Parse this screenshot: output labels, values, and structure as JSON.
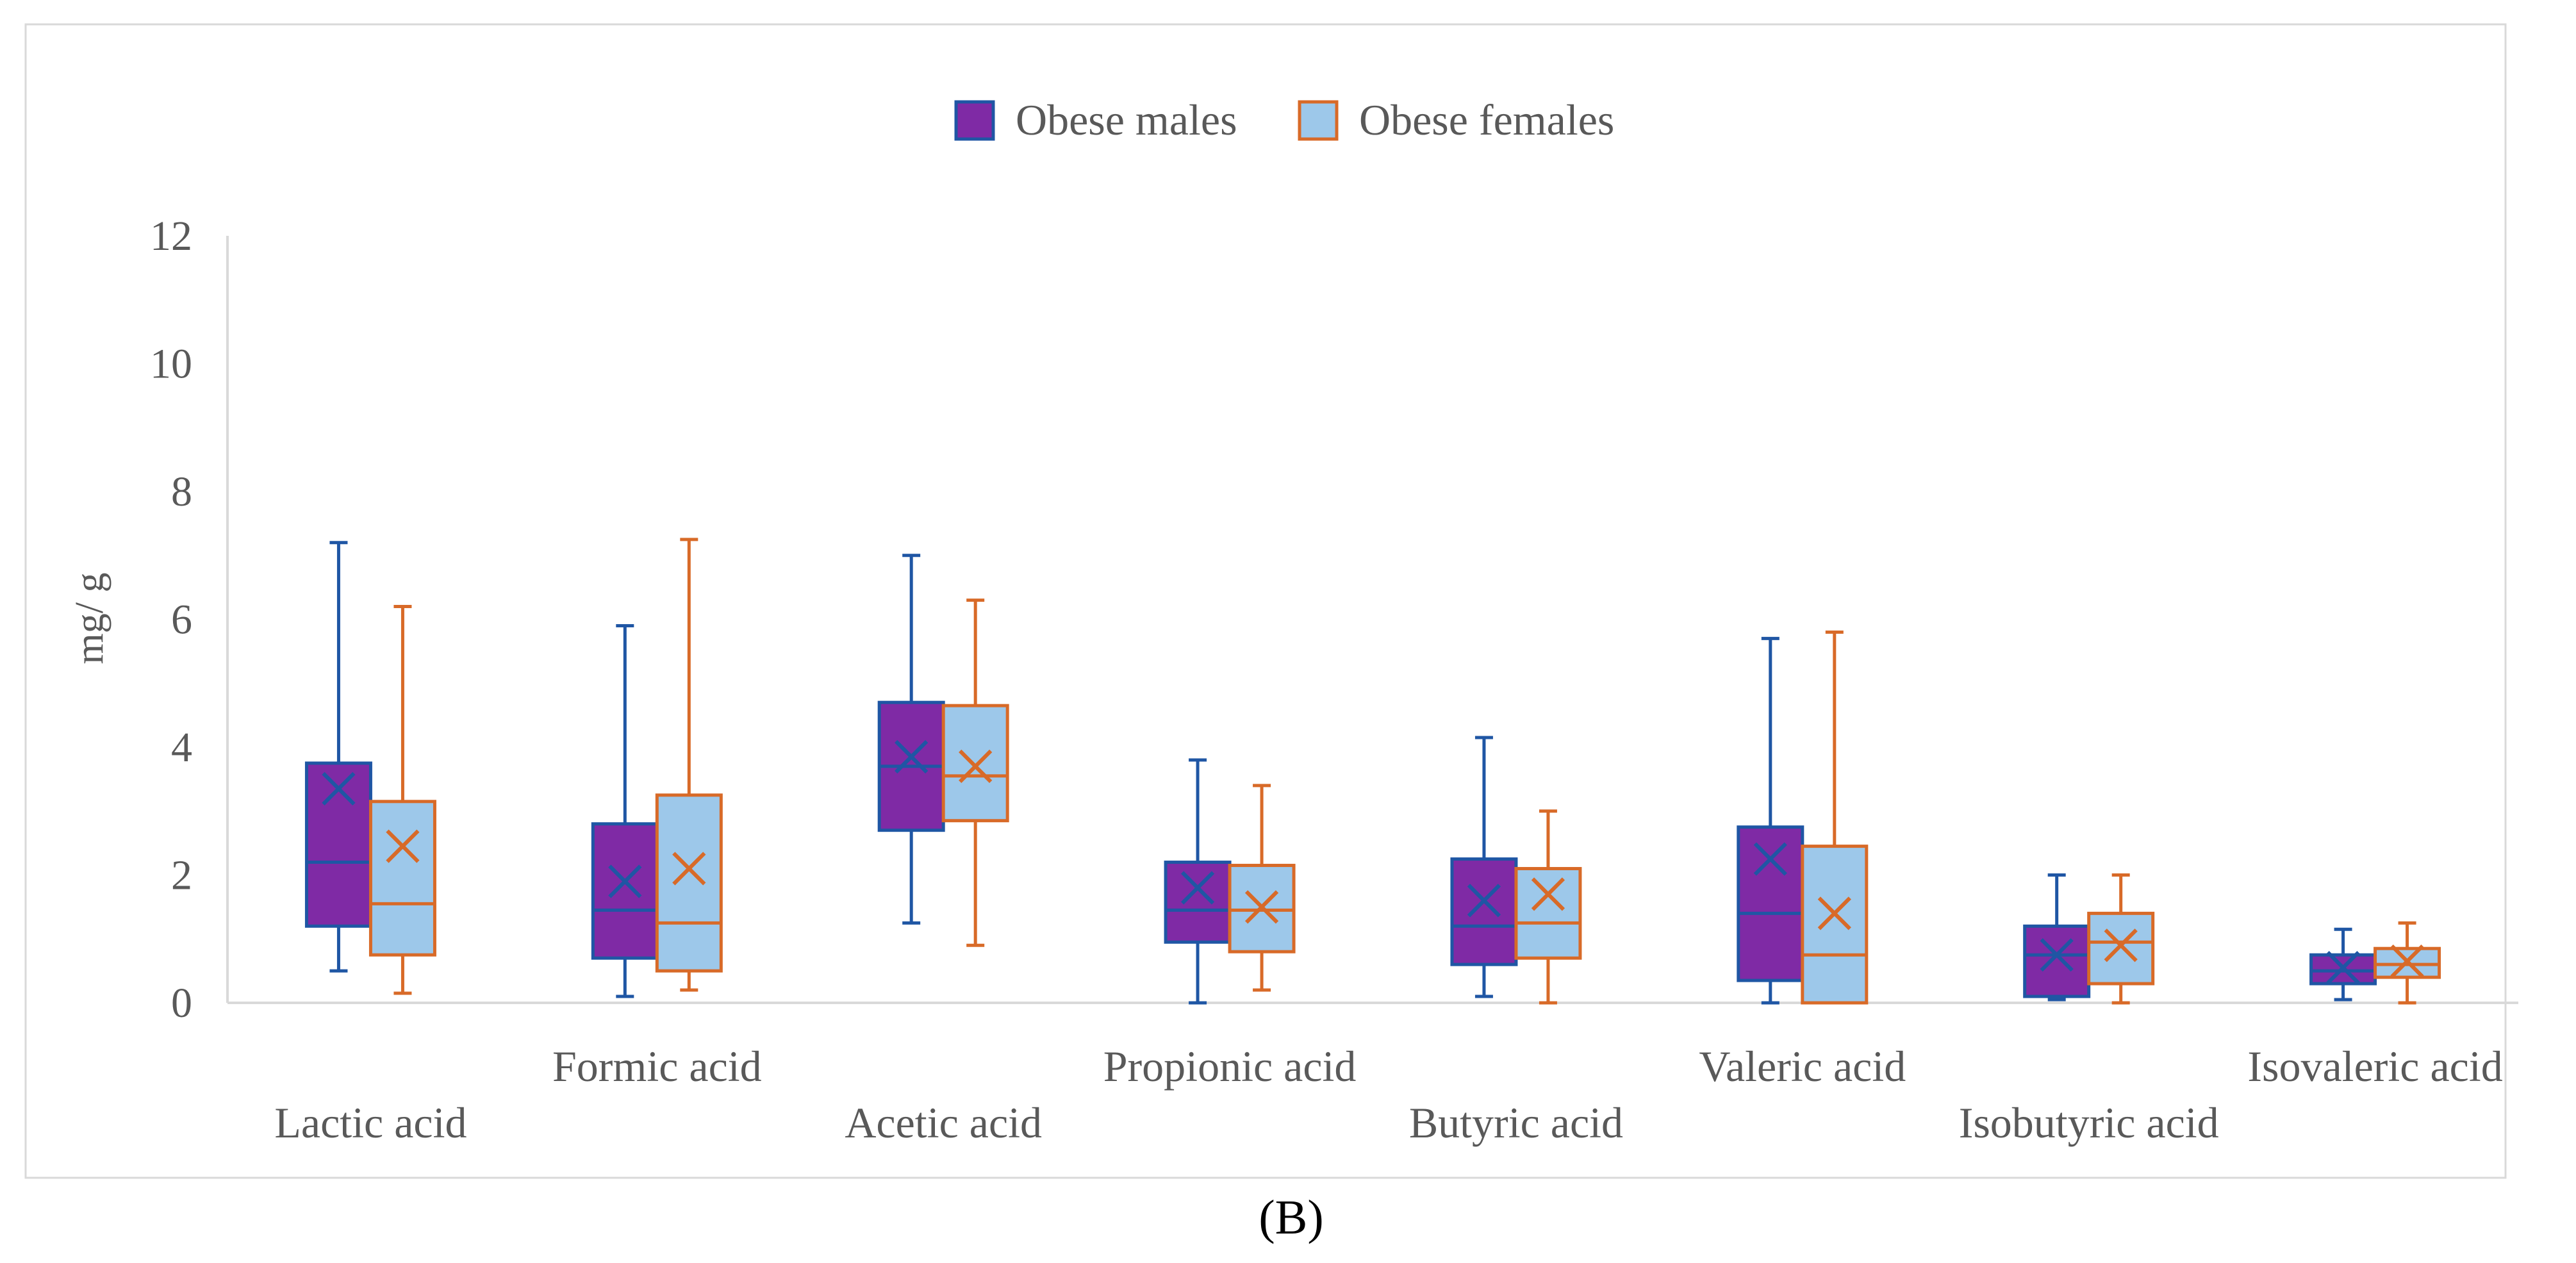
{
  "chart_data": {
    "type": "box",
    "title": "",
    "caption": "(B)",
    "ylabel": "mg/ g",
    "xlabel": "",
    "ylim": [
      0,
      12
    ],
    "yticks": [
      0,
      2,
      4,
      6,
      8,
      10,
      12
    ],
    "grid": false,
    "legend_position": "top-center",
    "categories": [
      "Lactic acid",
      "Formic acid",
      "Acetic acid",
      "Propionic acid",
      "Butyric acid",
      "Valeric acid",
      "Isobutyric acid",
      "Isovaleric acid"
    ],
    "series": [
      {
        "name": "Obese males",
        "fill": "#7f2aa5",
        "stroke": "#1f56a4",
        "boxes": [
          {
            "min": 0.5,
            "q1": 1.2,
            "median": 2.2,
            "q3": 3.75,
            "max": 7.2,
            "mean": 3.35
          },
          {
            "min": 0.1,
            "q1": 0.7,
            "median": 1.45,
            "q3": 2.8,
            "max": 5.9,
            "mean": 1.9
          },
          {
            "min": 1.25,
            "q1": 2.7,
            "median": 3.7,
            "q3": 4.7,
            "max": 7.0,
            "mean": 3.85
          },
          {
            "min": 0.0,
            "q1": 0.95,
            "median": 1.45,
            "q3": 2.2,
            "max": 3.8,
            "mean": 1.8
          },
          {
            "min": 0.1,
            "q1": 0.6,
            "median": 1.2,
            "q3": 2.25,
            "max": 4.15,
            "mean": 1.6
          },
          {
            "min": 0.0,
            "q1": 0.35,
            "median": 1.4,
            "q3": 2.75,
            "max": 5.7,
            "mean": 2.25
          },
          {
            "min": 0.05,
            "q1": 0.1,
            "median": 0.75,
            "q3": 1.2,
            "max": 2.0,
            "mean": 0.75
          },
          {
            "min": 0.05,
            "q1": 0.3,
            "median": 0.5,
            "q3": 0.75,
            "max": 1.15,
            "mean": 0.55
          }
        ]
      },
      {
        "name": "Obese females",
        "fill": "#9dc8ea",
        "stroke": "#d86a28",
        "boxes": [
          {
            "min": 0.15,
            "q1": 0.75,
            "median": 1.55,
            "q3": 3.15,
            "max": 6.2,
            "mean": 2.45
          },
          {
            "min": 0.2,
            "q1": 0.5,
            "median": 1.25,
            "q3": 3.25,
            "max": 7.25,
            "mean": 2.1
          },
          {
            "min": 0.9,
            "q1": 2.85,
            "median": 3.55,
            "q3": 4.65,
            "max": 6.3,
            "mean": 3.7
          },
          {
            "min": 0.2,
            "q1": 0.8,
            "median": 1.45,
            "q3": 2.15,
            "max": 3.4,
            "mean": 1.5
          },
          {
            "min": 0.0,
            "q1": 0.7,
            "median": 1.25,
            "q3": 2.1,
            "max": 3.0,
            "mean": 1.7
          },
          {
            "min": 0.0,
            "q1": 0.0,
            "median": 0.75,
            "q3": 2.45,
            "max": 5.8,
            "mean": 1.4
          },
          {
            "min": 0.0,
            "q1": 0.3,
            "median": 0.95,
            "q3": 1.4,
            "max": 2.0,
            "mean": 0.9
          },
          {
            "min": 0.0,
            "q1": 0.4,
            "median": 0.6,
            "q3": 0.85,
            "max": 1.25,
            "mean": 0.65
          }
        ]
      }
    ]
  }
}
